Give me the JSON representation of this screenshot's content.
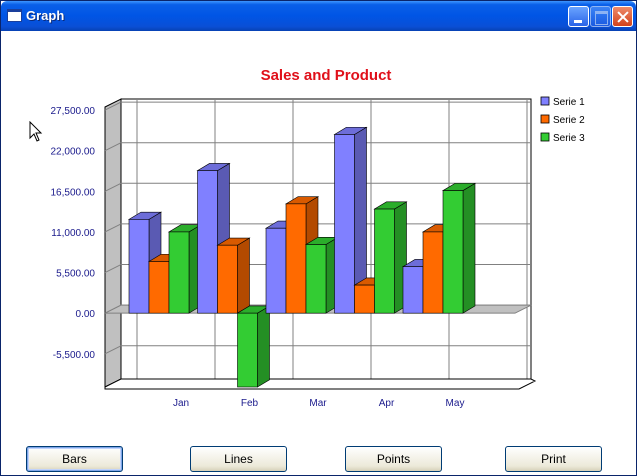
{
  "window": {
    "title": "Graph"
  },
  "chart_data": {
    "type": "bar",
    "title": "Sales and Product",
    "title_color": "#e0101a",
    "categories": [
      "Jan",
      "Feb",
      "Mar",
      "Apr",
      "May"
    ],
    "series": [
      {
        "name": "Serie 1",
        "color": "#8080ff",
        "values": [
          12700,
          19300,
          11500,
          24200,
          6300
        ]
      },
      {
        "name": "Serie 2",
        "color": "#ff6a00",
        "values": [
          7000,
          9200,
          14800,
          3800,
          11000
        ]
      },
      {
        "name": "Serie 3",
        "color": "#33cc33",
        "values": [
          11000,
          -10000,
          9300,
          14100,
          16600
        ]
      }
    ],
    "y_ticks": [
      "27,500.00",
      "22,000.00",
      "16,500.00",
      "11,000.00",
      "5,500.00",
      "0.00",
      "-5,500.00"
    ],
    "y_tick_values": [
      27500,
      22000,
      16500,
      11000,
      5500,
      0,
      -5500
    ],
    "ylim": [
      -10000,
      29000
    ],
    "three_d": true,
    "grid": true,
    "legend_position": "top-right"
  },
  "buttons": {
    "bars": "Bars",
    "lines": "Lines",
    "points": "Points",
    "print": "Print"
  }
}
